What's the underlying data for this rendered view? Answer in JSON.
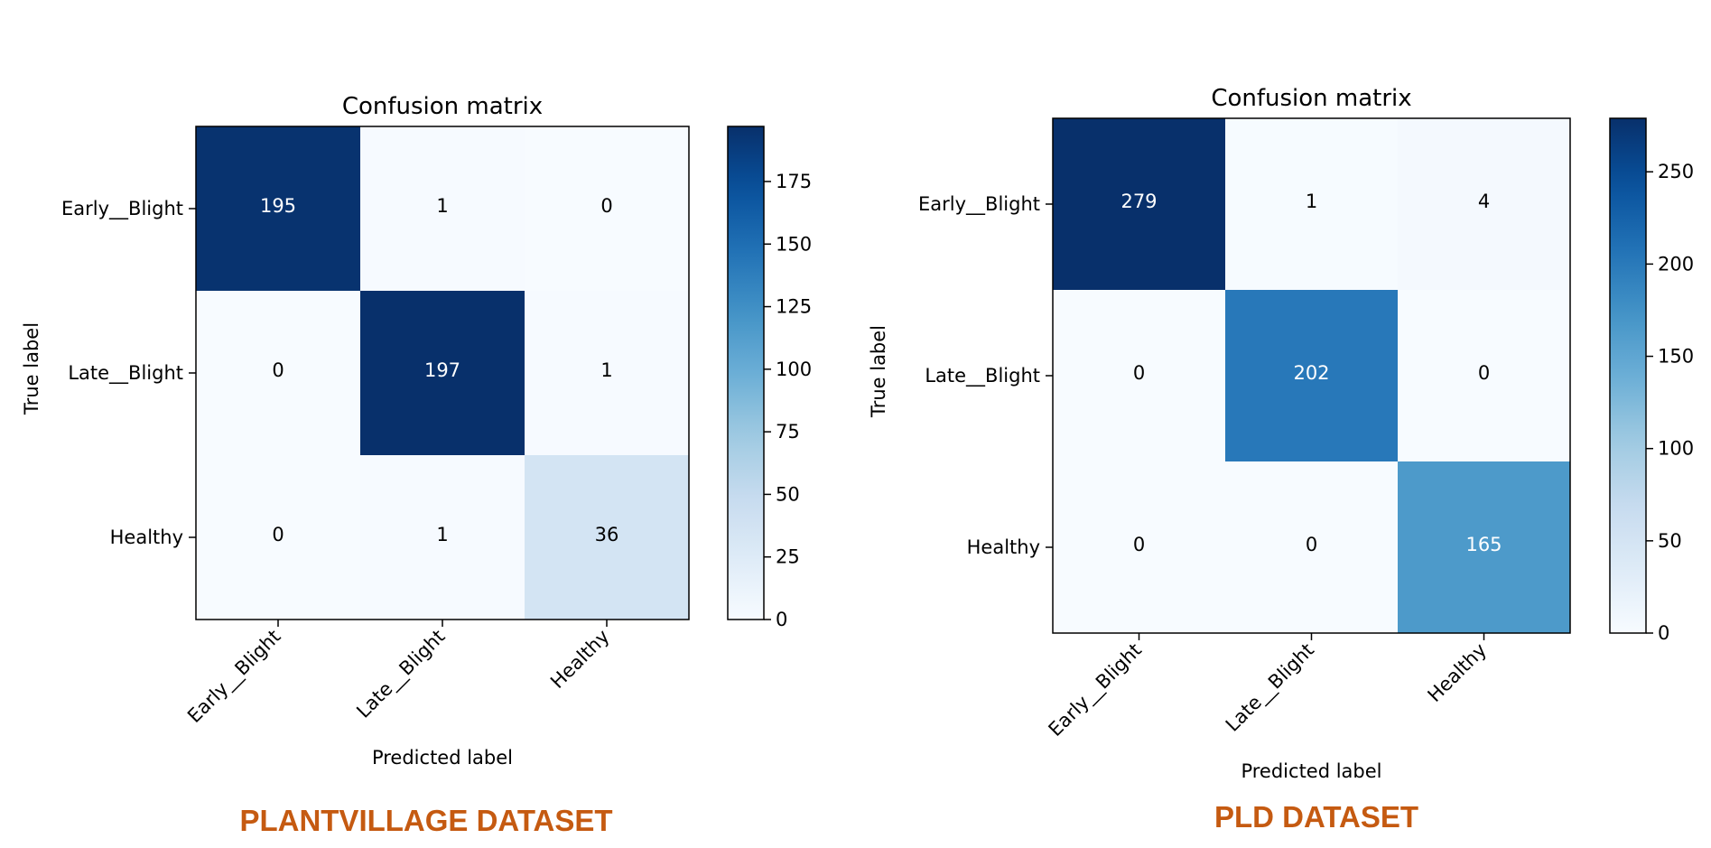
{
  "chart_data": [
    {
      "type": "heatmap",
      "title": "Confusion matrix",
      "xlabel": "Predicted label",
      "ylabel": "True label",
      "x_categories": [
        "Early__Blight",
        "Late__Blight",
        "Healthy"
      ],
      "y_categories": [
        "Early__Blight",
        "Late__Blight",
        "Healthy"
      ],
      "values": [
        [
          195,
          1,
          0
        ],
        [
          0,
          197,
          1
        ],
        [
          0,
          1,
          36
        ]
      ],
      "colormap": "Blues",
      "color_range": [
        0,
        197
      ],
      "colorbar_ticks": [
        0,
        25,
        50,
        75,
        100,
        125,
        150,
        175
      ],
      "caption": "PLANTVILLAGE DATASET"
    },
    {
      "type": "heatmap",
      "title": "Confusion matrix",
      "xlabel": "Predicted label",
      "ylabel": "True label",
      "x_categories": [
        "Early__Blight",
        "Late__Blight",
        "Healthy"
      ],
      "y_categories": [
        "Early__Blight",
        "Late__Blight",
        "Healthy"
      ],
      "values": [
        [
          279,
          1,
          4
        ],
        [
          0,
          202,
          0
        ],
        [
          0,
          0,
          165
        ]
      ],
      "colormap": "Blues",
      "color_range": [
        0,
        279
      ],
      "colorbar_ticks": [
        0,
        50,
        100,
        150,
        200,
        250
      ],
      "caption": "PLD DATASET"
    }
  ],
  "caption_color": "#c55a11"
}
